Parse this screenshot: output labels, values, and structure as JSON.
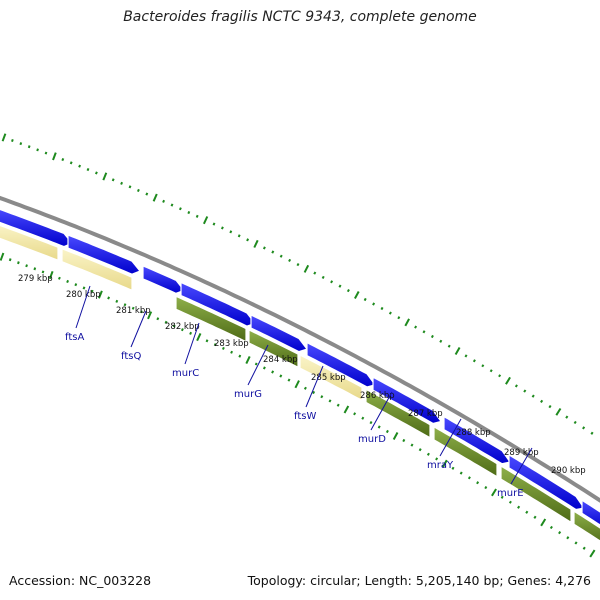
{
  "title": "Bacteroides fragilis NCTC 9343, complete genome",
  "accession_text": "Accession: NC_003228",
  "summary_text": "Topology: circular; Length: 5,205,140 bp; Genes: 4,276",
  "colors": {
    "background": "#ffffff",
    "backbone": "#8a8a8a",
    "forward_cds": "#1a1aff",
    "reverse_cds_green": "#6b8e23",
    "reverse_cds_yellow": "#f3e9a4",
    "ticks": "#1e8a1e",
    "gene_label": "#1010a0"
  },
  "kbp_labels": [
    "279 kbp",
    "280 kbp",
    "281 kbp",
    "282 kbp",
    "283 kbp",
    "284 kbp",
    "285 kbp",
    "286 kbp",
    "287 kbp",
    "288 kbp",
    "289 kbp",
    "290 kbp"
  ],
  "gene_labels": [
    "ftsA",
    "ftsQ",
    "murC",
    "murG",
    "ftsW",
    "murD",
    "mraY",
    "murE"
  ]
}
